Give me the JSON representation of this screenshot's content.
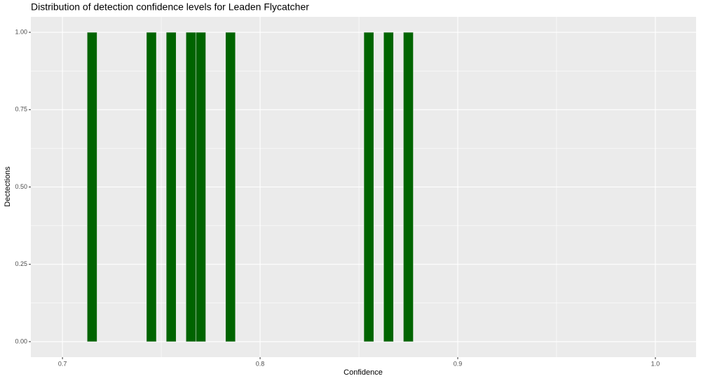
{
  "chart_data": {
    "type": "histogram",
    "title": "Distribution of detection confidence levels for Leaden Flycatcher",
    "x_label": "Confidence",
    "y_label": "Dectections",
    "bins": [
      0.7125,
      0.7175,
      0.7225,
      0.7275,
      0.7325,
      0.7375,
      0.7425,
      0.7475,
      0.7525,
      0.7575,
      0.7625,
      0.7675,
      0.7725,
      0.7775,
      0.7825,
      0.7875,
      0.7925,
      0.7975,
      0.8025,
      0.8075,
      0.8125,
      0.8175,
      0.8225,
      0.8275,
      0.8325,
      0.8375,
      0.8425,
      0.8475,
      0.8525,
      0.8575,
      0.8625,
      0.8675,
      0.8725,
      0.8775
    ],
    "values": [
      1,
      0,
      0,
      0,
      0,
      0,
      1,
      0,
      1,
      0,
      1,
      1,
      0,
      0,
      1,
      0,
      0,
      0,
      0,
      0,
      0,
      0,
      0,
      0,
      0,
      0,
      0,
      0,
      1,
      0,
      1,
      0,
      1
    ],
    "color": "#006400",
    "xlim": [
      0.684,
      1.0206
    ],
    "ylim": [
      -0.05,
      1.05
    ],
    "xticks": [
      0.7,
      0.8,
      0.9,
      {
        "value": 1,
        "label": "1.0"
      }
    ],
    "yticks": [
      {
        "value": 0,
        "label": "0.00"
      },
      {
        "value": 0.25,
        "label": "0.25"
      },
      {
        "value": 0.5,
        "label": "0.50"
      },
      {
        "value": 0.75,
        "label": "0.75"
      },
      {
        "value": 1,
        "label": "1.00"
      }
    ],
    "grid": true
  }
}
